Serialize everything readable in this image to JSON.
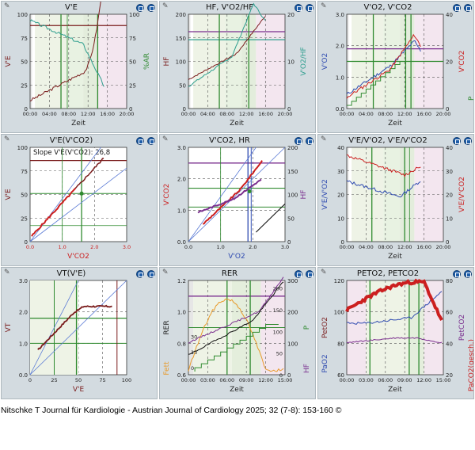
{
  "caption": "Nitschke T Journal für Kardiologie - Austrian Journal of Cardiology 2025; 32 (7-8): 153-160 ©",
  "colors": {
    "red": "#cc1f1f",
    "darkred": "#7a1c1c",
    "teal": "#2e9e8e",
    "purple": "#7a2e8e",
    "green": "#2f8a2f",
    "blue": "#2f4bb0",
    "orange": "#e89a2a",
    "black": "#111111"
  },
  "chart_data": [
    {
      "id": "p1",
      "type": "line",
      "title": "V'E",
      "xlabel": "Zeit",
      "ylabel": "V'E",
      "ylabel_right": "%AR",
      "x_ticks": [
        "00:00",
        "04:00",
        "08:00",
        "12:00",
        "16:00",
        "20:00"
      ],
      "y_ticks": [
        "0",
        "25",
        "50",
        "75",
        "100"
      ],
      "y2_ticks": [
        "0",
        "25",
        "50",
        "75",
        "100"
      ],
      "ylim": [
        0,
        100
      ],
      "xlim": [
        0,
        20
      ]
    },
    {
      "id": "p2",
      "type": "line",
      "title": "HF, V'O2/HF",
      "xlabel": "Zeit",
      "ylabel": "HF",
      "ylabel_right": "V'O2/HF",
      "x_ticks": [
        "00:00",
        "04:00",
        "08:00",
        "12:00",
        "16:00",
        "20:00"
      ],
      "y_ticks": [
        "0",
        "50",
        "100",
        "150",
        "200"
      ],
      "y2_ticks": [
        "0",
        "10",
        "20"
      ],
      "ylim": [
        0,
        200
      ],
      "xlim": [
        0,
        20
      ]
    },
    {
      "id": "p3",
      "type": "line",
      "title": "V'O2, V'CO2",
      "xlabel": "Zeit",
      "ylabel": "V'O2",
      "ylabel_right": "V'CO2",
      "ylabel_right2": "P",
      "x_ticks": [
        "00:00",
        "04:00",
        "08:00",
        "12:00",
        "16:00",
        "20:00"
      ],
      "y_ticks": [
        "0.0",
        "1.0",
        "2.0",
        "3.0"
      ],
      "y2_ticks": [
        "0",
        "20",
        "40"
      ],
      "ylim": [
        0,
        3
      ],
      "xlim": [
        0,
        20
      ]
    },
    {
      "id": "p4",
      "type": "scatter",
      "title": "V'E(V'CO2)",
      "annotation": "Slope V'E(V'CO2): 26,8",
      "xlabel": "V'CO2",
      "ylabel": "V'E",
      "x_ticks": [
        "0.0",
        "1.0",
        "2.0",
        "3.0"
      ],
      "y_ticks": [
        "0",
        "25",
        "50",
        "75",
        "100"
      ],
      "xlim": [
        0,
        3
      ],
      "ylim": [
        0,
        100
      ]
    },
    {
      "id": "p5",
      "type": "scatter",
      "title": "V'CO2, HR",
      "xlabel": "V'O2",
      "ylabel": "V'CO2",
      "ylabel_right": "HF",
      "x_ticks": [
        "0.0",
        "1.0",
        "2.0",
        "3.0"
      ],
      "y_ticks": [
        "0.0",
        "1.0",
        "2.0",
        "3.0"
      ],
      "y2_ticks": [
        "0",
        "50",
        "100",
        "150",
        "200"
      ],
      "xlim": [
        0,
        3
      ],
      "ylim": [
        0,
        3
      ]
    },
    {
      "id": "p6",
      "type": "line",
      "title": "V'E/V'O2, V'E/V'CO2",
      "xlabel": "Zeit",
      "ylabel": "V'E/V'O2",
      "ylabel_right": "V'E/V'CO2",
      "x_ticks": [
        "00:00",
        "04:00",
        "08:00",
        "12:00",
        "16:00",
        "20:00"
      ],
      "y_ticks": [
        "0",
        "10",
        "20",
        "30",
        "40"
      ],
      "y2_ticks": [
        "0",
        "10",
        "20",
        "30",
        "40"
      ],
      "ylim": [
        0,
        40
      ],
      "xlim": [
        0,
        20
      ]
    },
    {
      "id": "p7",
      "type": "scatter",
      "title": "VT(V'E)",
      "xlabel": "V'E",
      "ylabel": "VT",
      "x_ticks": [
        "0",
        "25",
        "50",
        "75",
        "100"
      ],
      "y_ticks": [
        "0.0",
        "1.0",
        "2.0",
        "3.0"
      ],
      "xlim": [
        0,
        100
      ],
      "ylim": [
        0,
        3
      ]
    },
    {
      "id": "p8",
      "type": "line",
      "title": "RER",
      "xlabel": "Zeit",
      "ylabel": "RER",
      "ylabel_left2": "Fett",
      "ylabel_right": "P",
      "ylabel_right2": "HF",
      "x_ticks": [
        "00:00",
        "03:00",
        "06:00",
        "09:00",
        "12:00",
        "15:00"
      ],
      "y_ticks": [
        "0.6",
        "0.8",
        "1.0",
        "1.2"
      ],
      "y_ticks_inner": [
        "0",
        "15",
        "30"
      ],
      "y2_ticks": [
        "0",
        "100",
        "200",
        "300"
      ],
      "y2_ticks_inner": [
        "0",
        "50",
        "100",
        "150",
        "200"
      ],
      "ylim": [
        0.6,
        1.2
      ],
      "xlim": [
        0,
        15
      ]
    },
    {
      "id": "p9",
      "type": "line",
      "title": "PETO2, PETCO2",
      "xlabel": "Zeit",
      "ylabel": "PetO2",
      "ylabel_left2": "PaO2",
      "ylabel_right": "PetCO2",
      "ylabel_right2": "PaCO2(gesch.)",
      "x_ticks": [
        "00:00",
        "03:00",
        "06:00",
        "09:00",
        "12:00",
        "15:00"
      ],
      "y_ticks": [
        "60",
        "80",
        "100",
        "120"
      ],
      "y2_ticks": [
        "20",
        "40",
        "60",
        "80"
      ],
      "ylim": [
        60,
        120
      ],
      "xlim": [
        0,
        15
      ]
    }
  ]
}
